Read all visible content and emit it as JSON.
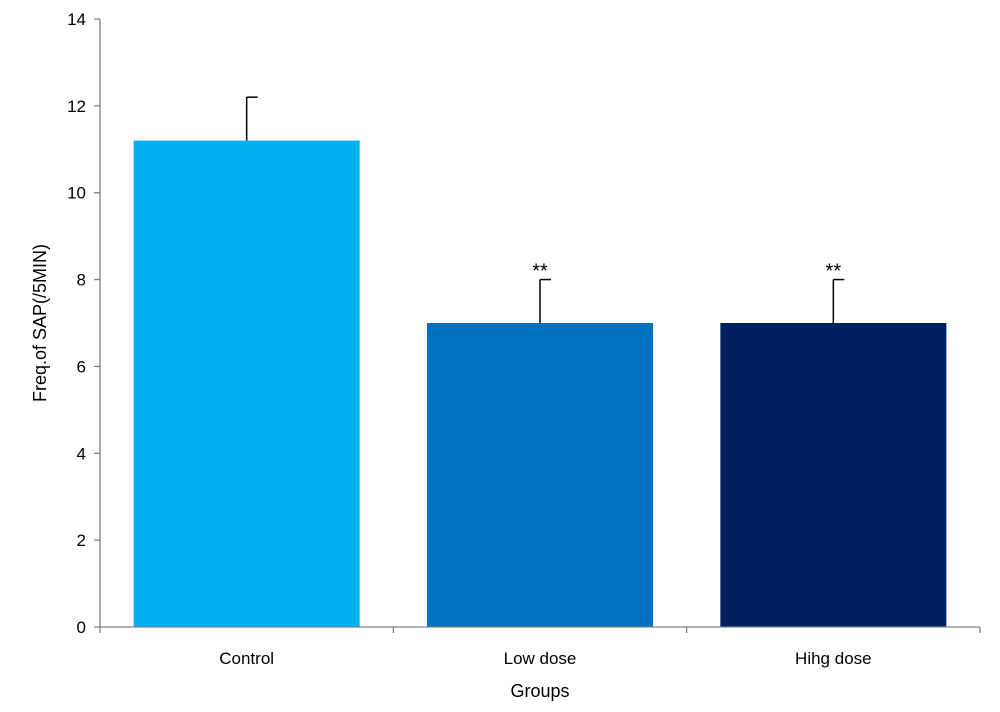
{
  "chart_data": {
    "type": "bar",
    "title": "",
    "xlabel": "Groups",
    "ylabel": "Freq.of SAP(/5MIN)",
    "categories": [
      "Control",
      "Low dose",
      "Hihg dose"
    ],
    "values": [
      11.2,
      7.0,
      7.0
    ],
    "error_bars": [
      1.0,
      1.0,
      1.0
    ],
    "annotations": [
      "",
      "**",
      "**"
    ],
    "colors": [
      "#00b0f0",
      "#0070c0",
      "#002060"
    ],
    "ylim": [
      0,
      14
    ],
    "yticks": [
      "0",
      "2",
      "4",
      "6",
      "8",
      "10",
      "12",
      "14"
    ],
    "ytick_values": [
      0,
      2,
      4,
      6,
      8,
      10,
      12,
      14
    ],
    "grid": false,
    "legend": "none"
  }
}
